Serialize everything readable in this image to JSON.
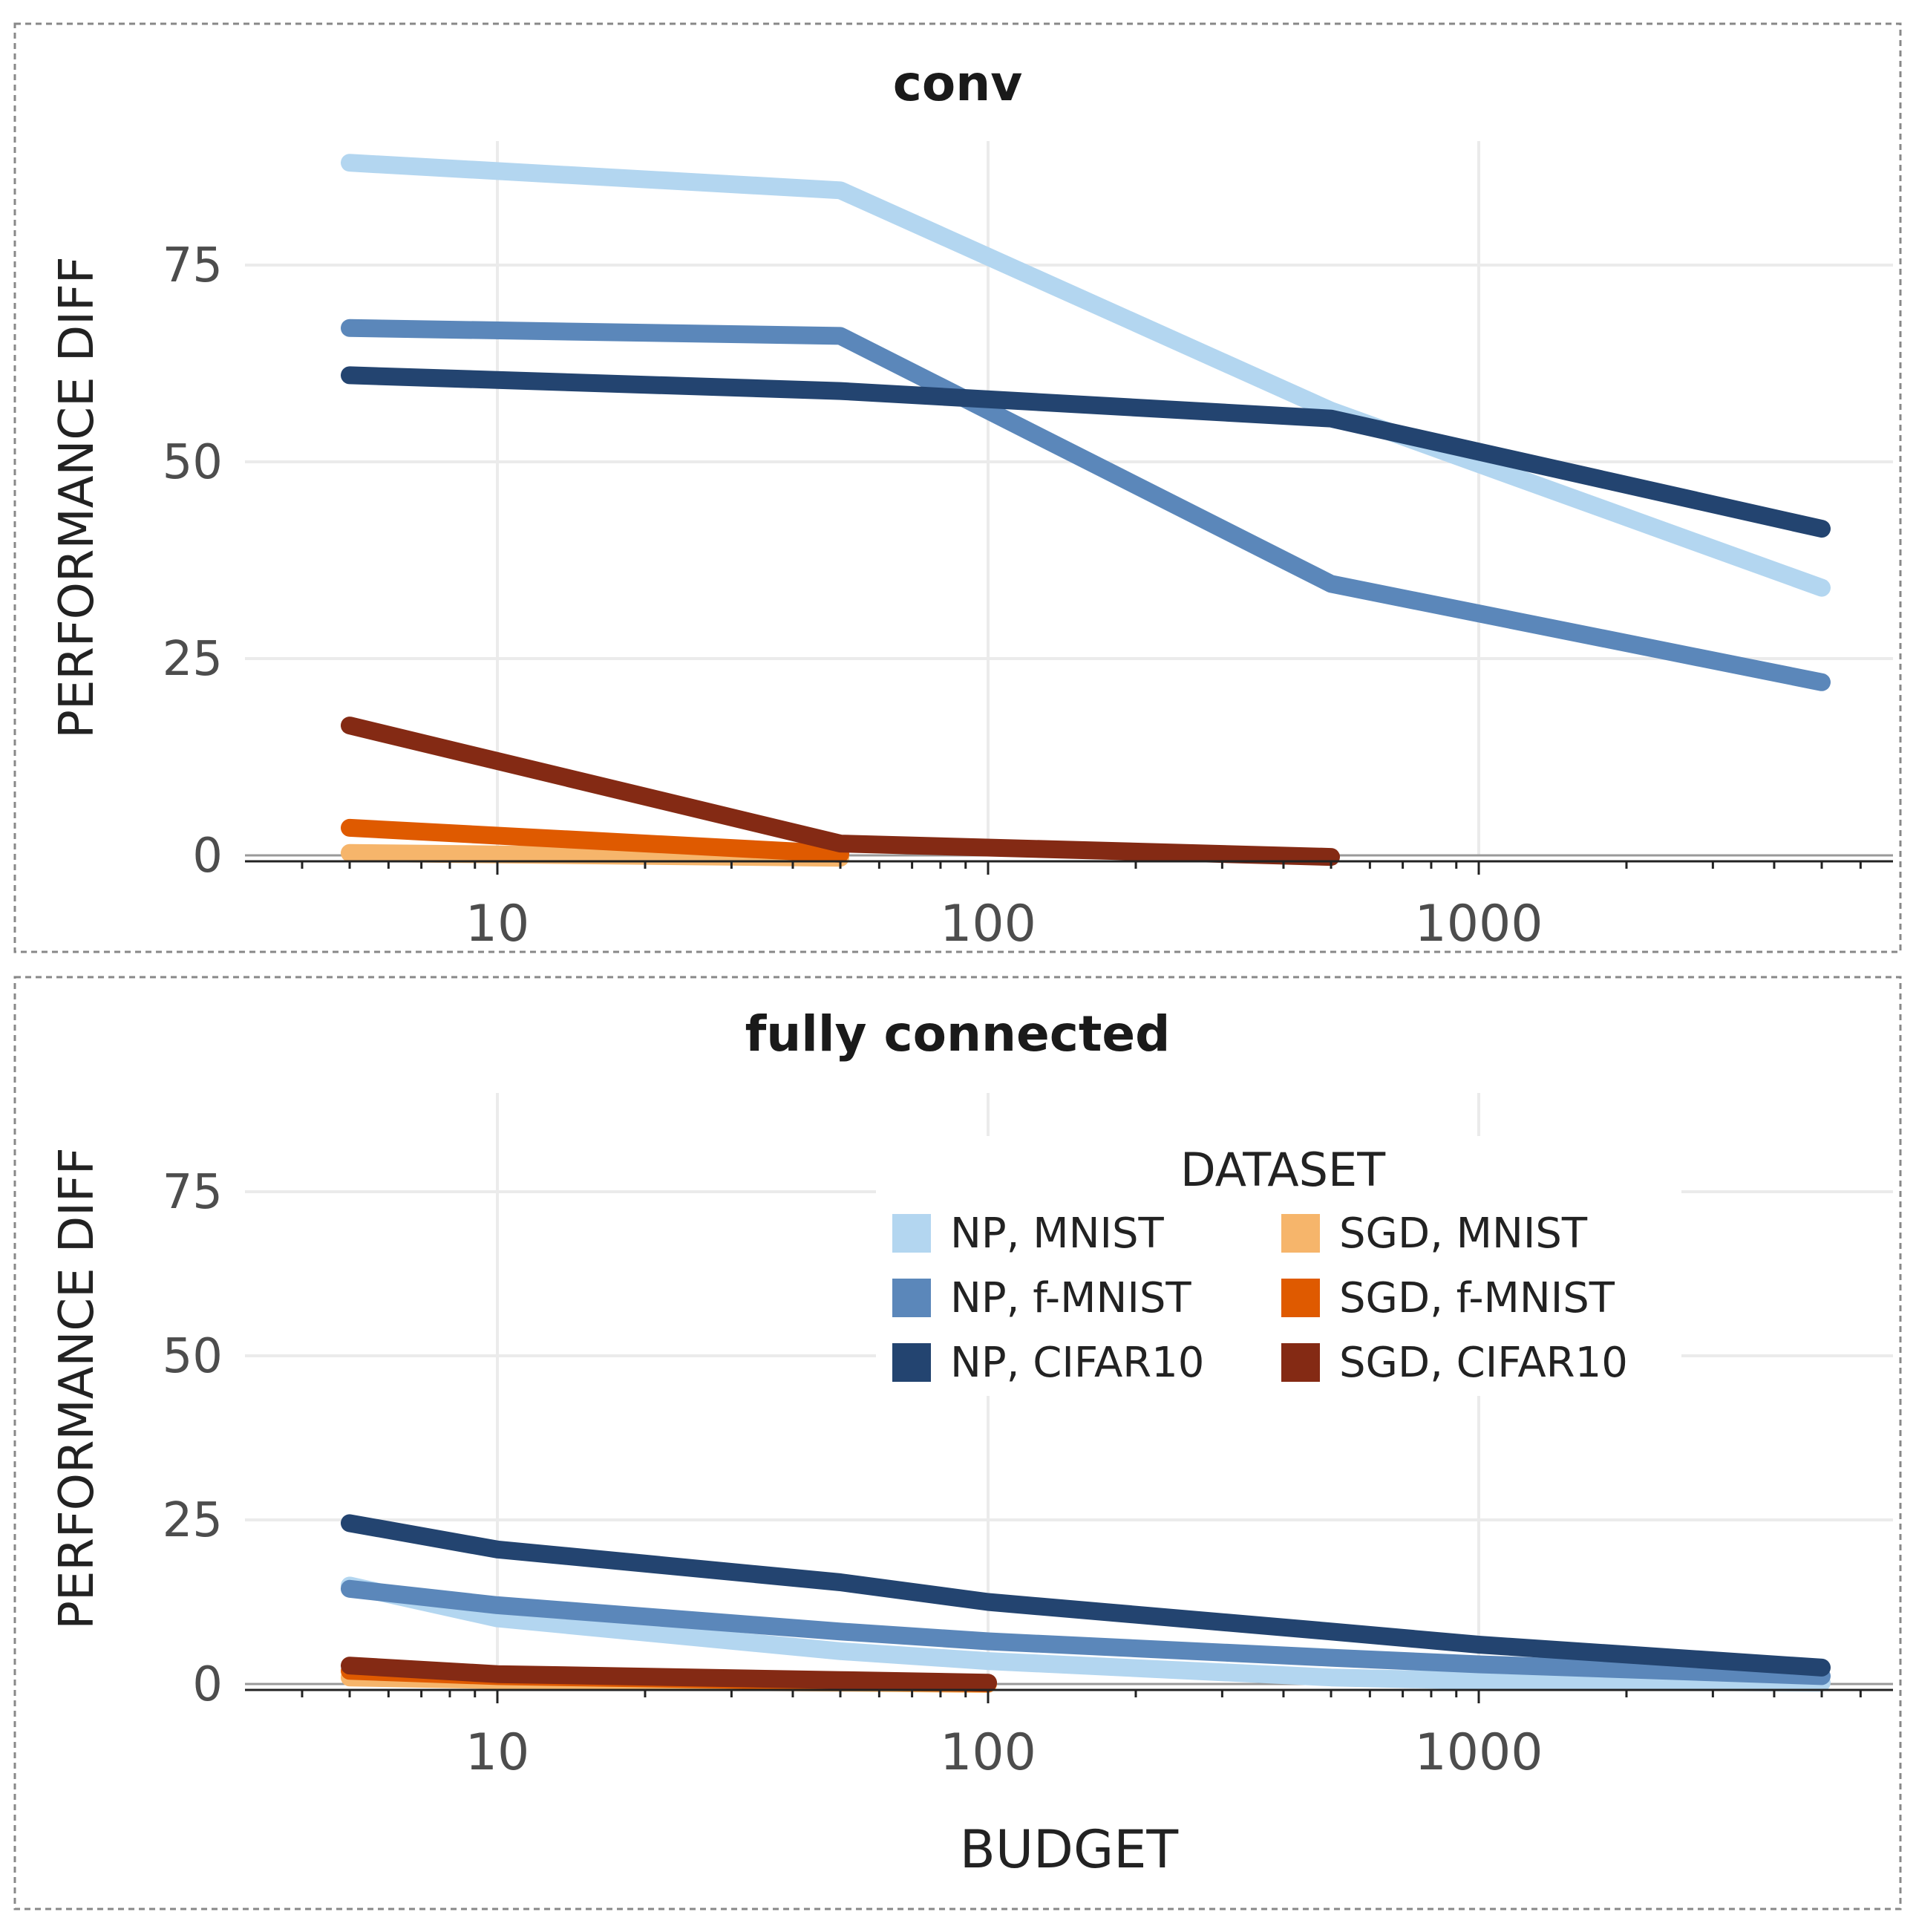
{
  "chart_data": {
    "type": "line",
    "x_scale": "log",
    "xlabel": "BUDGET",
    "ylabel": "PERFORMANCE DIFF",
    "x_ticks": [
      "10",
      "100",
      "1000"
    ],
    "y_ticks": [
      "0",
      "25",
      "50",
      "75"
    ],
    "grid": true,
    "legend": {
      "title": "DATASET",
      "placement": "inside-upper-right of bottom panel",
      "columns": 2
    },
    "series_styles": [
      {
        "name": "NP, MNIST",
        "color": "#b3d6f0"
      },
      {
        "name": "NP, f-MNIST",
        "color": "#5b87ba"
      },
      {
        "name": "NP, CIFAR10",
        "color": "#234470"
      },
      {
        "name": "SGD, MNIST",
        "color": "#f6b56b"
      },
      {
        "name": "SGD, f-MNIST",
        "color": "#df5a00"
      },
      {
        "name": "SGD, CIFAR10",
        "color": "#842a14"
      }
    ],
    "panels": [
      {
        "title": "conv",
        "series": [
          {
            "name": "NP, MNIST",
            "x": [
              5,
              50,
              500,
              5000
            ],
            "y": [
              88,
              84.5,
              56.5,
              34
            ]
          },
          {
            "name": "NP, f-MNIST",
            "x": [
              5,
              50,
              500,
              5000
            ],
            "y": [
              67,
              66,
              34.5,
              22
            ]
          },
          {
            "name": "NP, CIFAR10",
            "x": [
              5,
              50,
              500,
              5000
            ],
            "y": [
              61,
              59,
              55.5,
              41.5
            ]
          },
          {
            "name": "SGD, MNIST",
            "x": [
              5,
              50
            ],
            "y": [
              0.3,
              -0.3
            ]
          },
          {
            "name": "SGD, f-MNIST",
            "x": [
              5,
              50
            ],
            "y": [
              3.5,
              0.2
            ]
          },
          {
            "name": "SGD, CIFAR10",
            "x": [
              5,
              50,
              500
            ],
            "y": [
              16.5,
              1.5,
              -0.2
            ]
          }
        ]
      },
      {
        "title": "fully connected",
        "series": [
          {
            "name": "NP, MNIST",
            "x": [
              5,
              10,
              50,
              100,
              500,
              1000,
              5000
            ],
            "y": [
              15,
              10,
              5,
              3.5,
              1,
              0.5,
              0.2
            ]
          },
          {
            "name": "NP, f-MNIST",
            "x": [
              5,
              10,
              50,
              100,
              500,
              1000,
              5000
            ],
            "y": [
              14.5,
              12,
              8,
              6.5,
              4,
              3,
              1.2
            ]
          },
          {
            "name": "NP, CIFAR10",
            "x": [
              5,
              10,
              50,
              100,
              500,
              1000,
              5000
            ],
            "y": [
              24.5,
              20.5,
              15.5,
              12.5,
              8,
              6,
              2.5
            ]
          },
          {
            "name": "SGD, MNIST",
            "x": [
              5,
              10,
              50,
              100
            ],
            "y": [
              1,
              0.6,
              0.2,
              0
            ]
          },
          {
            "name": "SGD, f-MNIST",
            "x": [
              5,
              10,
              50,
              100
            ],
            "y": [
              2,
              1.2,
              0.4,
              0.1
            ]
          },
          {
            "name": "SGD, CIFAR10",
            "x": [
              5,
              10,
              50,
              100
            ],
            "y": [
              2.8,
              1.5,
              0.6,
              0.2
            ]
          }
        ]
      }
    ]
  }
}
